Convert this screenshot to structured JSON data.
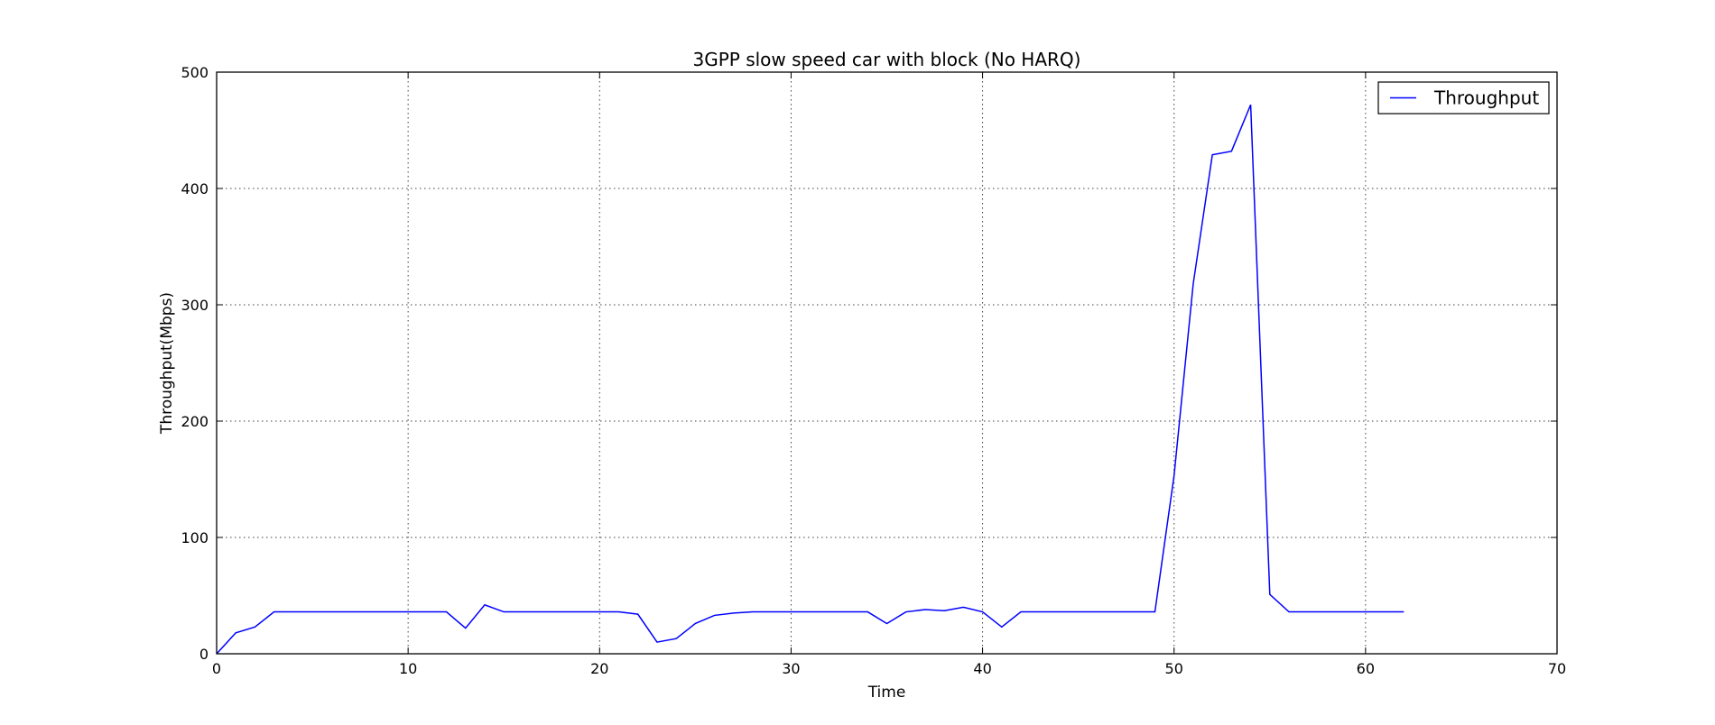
{
  "chart_data": {
    "type": "line",
    "title": "3GPP slow speed car with block (No HARQ)",
    "xlabel": "Time",
    "ylabel": "Throughput(Mbps)",
    "xlim": [
      0,
      70
    ],
    "ylim": [
      0,
      500
    ],
    "xticks": [
      0,
      10,
      20,
      30,
      40,
      50,
      60,
      70
    ],
    "yticks": [
      0,
      100,
      200,
      300,
      400,
      500
    ],
    "xtick_labels": [
      "0",
      "10",
      "20",
      "30",
      "40",
      "50",
      "60",
      "70"
    ],
    "ytick_labels": [
      "0",
      "100",
      "200",
      "300",
      "400",
      "500"
    ],
    "grid": true,
    "legend": {
      "position": "top-right",
      "entries": [
        "Throughput"
      ]
    },
    "series": [
      {
        "name": "Throughput",
        "color": "#0000ff",
        "x": [
          0,
          1,
          2,
          3,
          4,
          5,
          6,
          7,
          8,
          9,
          10,
          11,
          12,
          13,
          14,
          15,
          16,
          17,
          18,
          19,
          20,
          21,
          22,
          23,
          24,
          25,
          26,
          27,
          28,
          29,
          30,
          31,
          32,
          33,
          34,
          35,
          36,
          37,
          38,
          39,
          40,
          41,
          42,
          43,
          44,
          45,
          46,
          47,
          48,
          49,
          50,
          51,
          52,
          53,
          54,
          55,
          56,
          57,
          58,
          59,
          60,
          61,
          62
        ],
        "y": [
          0,
          18,
          23,
          36,
          36,
          36,
          36,
          36,
          36,
          36,
          36,
          36,
          36,
          22,
          42,
          36,
          36,
          36,
          36,
          36,
          36,
          36,
          34,
          10,
          13,
          26,
          33,
          35,
          36,
          36,
          36,
          36,
          36,
          36,
          36,
          26,
          36,
          38,
          37,
          40,
          36,
          23,
          36,
          36,
          36,
          36,
          36,
          36,
          36,
          36,
          153,
          318,
          429,
          432,
          472,
          51,
          36,
          36,
          36,
          36,
          36,
          36,
          36
        ]
      }
    ]
  }
}
